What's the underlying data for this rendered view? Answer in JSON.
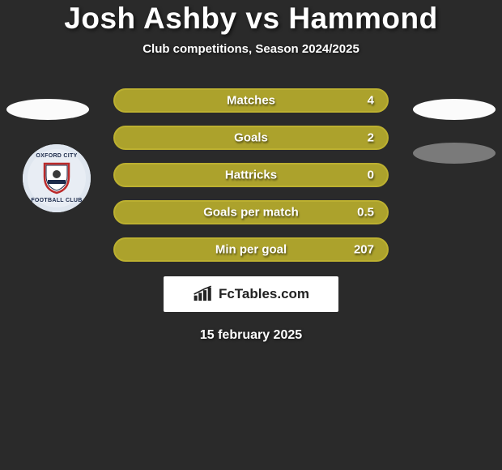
{
  "title": "Josh Ashby vs Hammond",
  "subtitle": "Club competitions, Season 2024/2025",
  "colors": {
    "bar_fill": "#aca22c",
    "bar_border": "#bcb030",
    "background": "#2a2a2a"
  },
  "left_badge": {
    "text_top": "OXFORD CITY",
    "text_bottom": "FOOTBALL CLUB"
  },
  "bars": [
    {
      "label": "Matches",
      "value": "4"
    },
    {
      "label": "Goals",
      "value": "2"
    },
    {
      "label": "Hattricks",
      "value": "0"
    },
    {
      "label": "Goals per match",
      "value": "0.5"
    },
    {
      "label": "Min per goal",
      "value": "207"
    }
  ],
  "footer": {
    "brand": "FcTables.com"
  },
  "date": "15 february 2025"
}
